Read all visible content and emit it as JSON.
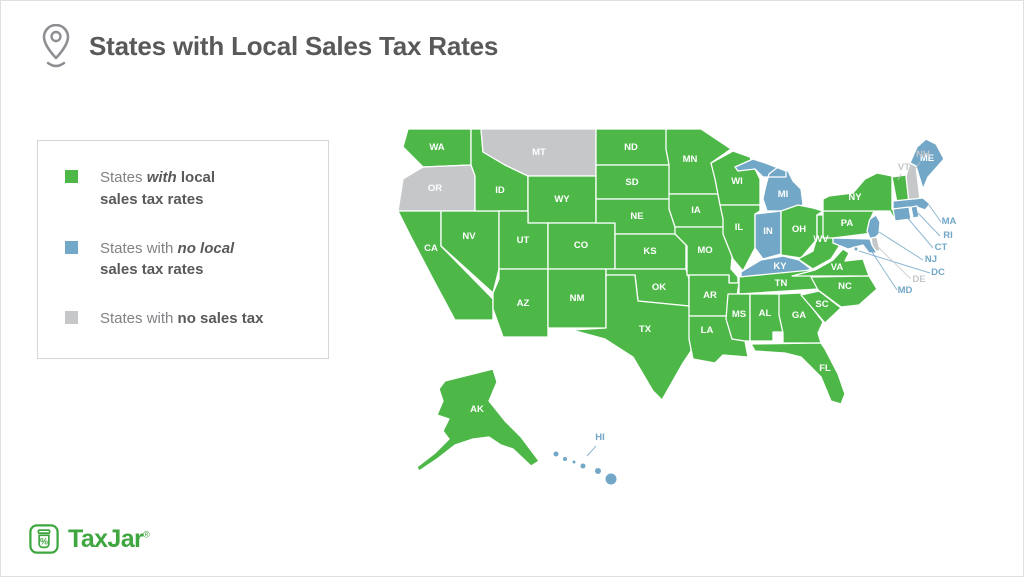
{
  "title": {
    "text": "States with Local Sales Tax Rates"
  },
  "colors": {
    "green": "#4db848",
    "blue": "#72a7c7",
    "gray": "#c5c7c9"
  },
  "legend": {
    "items": [
      {
        "color": "green",
        "lines": [
          [
            {
              "text": "States "
            },
            {
              "text": "with",
              "bold": true,
              "italic": true
            },
            {
              "text": " local",
              "bold": true
            }
          ],
          [
            {
              "text": "sales tax rates",
              "bold": true
            }
          ]
        ]
      },
      {
        "color": "blue",
        "lines": [
          [
            {
              "text": "States with "
            },
            {
              "text": "no local",
              "bold": true,
              "italic": true
            }
          ],
          [
            {
              "text": "sales tax rates",
              "bold": true
            }
          ]
        ]
      },
      {
        "color": "gray",
        "lines": [
          [
            {
              "text": "States with "
            },
            {
              "text": "no sales tax",
              "bold": true
            }
          ]
        ]
      }
    ]
  },
  "map": {
    "state_categories": {
      "WA": "green",
      "ID": "green",
      "WY": "green",
      "NV": "green",
      "UT": "green",
      "CO": "green",
      "CA": "green",
      "AZ": "green",
      "NM": "green",
      "ND": "green",
      "SD": "green",
      "NE": "green",
      "KS": "green",
      "OK": "green",
      "TX": "green",
      "MN": "green",
      "IA": "green",
      "MO": "green",
      "AR": "green",
      "LA": "green",
      "WI": "green",
      "IL": "green",
      "OH": "green",
      "PA": "green",
      "NY": "green",
      "VT": "green",
      "WV": "green",
      "VA": "green",
      "NC": "green",
      "SC": "green",
      "GA": "green",
      "AL": "green",
      "MS": "green",
      "TN": "green",
      "FL": "green",
      "AK": "green",
      "MI": "blue",
      "IN": "blue",
      "KY": "blue",
      "ME": "blue",
      "MA": "blue",
      "RI": "blue",
      "CT": "blue",
      "NJ": "blue",
      "MD": "blue",
      "DC": "blue",
      "HI": "blue",
      "MT": "gray",
      "OR": "gray",
      "NH": "gray",
      "DE": "gray"
    },
    "label_color_overrides": {
      "VT": "gray"
    }
  },
  "footer": {
    "brand": "TaxJar",
    "registered": "®"
  }
}
